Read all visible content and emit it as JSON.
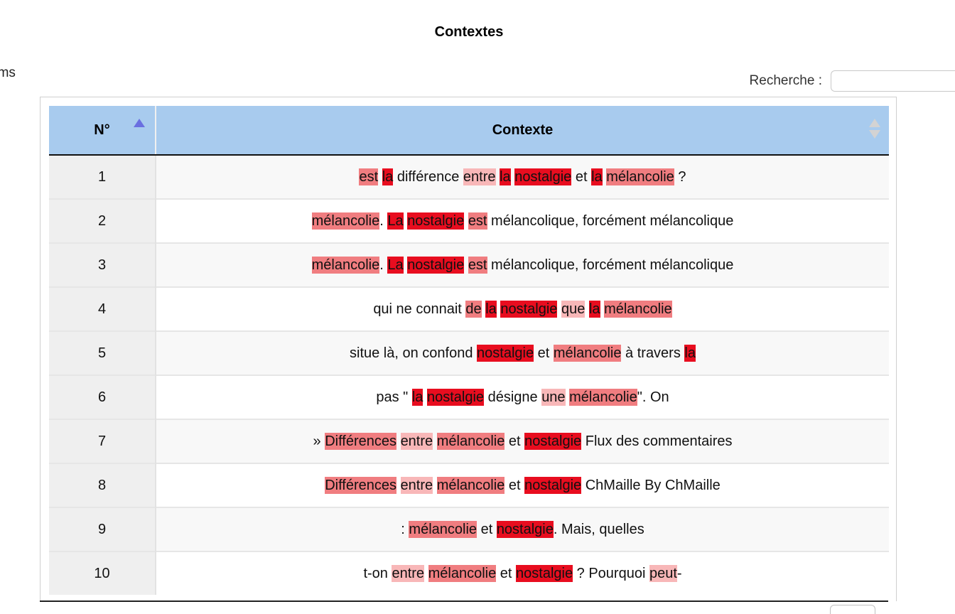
{
  "page": {
    "title": "Contextes",
    "items_label": "ems"
  },
  "search": {
    "label": "Recherche :",
    "value": "",
    "placeholder": ""
  },
  "colors": {
    "header_bg": "#a8cbee",
    "highlight_strong": "#e80d1f",
    "highlight_medium": "#f07d80",
    "highlight_light": "#f8b7b8",
    "sort_active": "#6a6fe0"
  },
  "table": {
    "columns": [
      {
        "label": "N°",
        "sort": "ascending"
      },
      {
        "label": "Contexte",
        "sort": "none"
      }
    ],
    "rows": [
      {
        "num": "1",
        "segments": [
          {
            "t": "est",
            "h": 2
          },
          {
            "t": " "
          },
          {
            "t": "la",
            "h": 1
          },
          {
            "t": " différence "
          },
          {
            "t": "entre",
            "h": 3
          },
          {
            "t": " "
          },
          {
            "t": "la",
            "h": 1
          },
          {
            "t": " "
          },
          {
            "t": "nostalgie",
            "h": 1
          },
          {
            "t": " et "
          },
          {
            "t": "la",
            "h": 1
          },
          {
            "t": " "
          },
          {
            "t": "mélancolie",
            "h": 2
          },
          {
            "t": " ?"
          }
        ]
      },
      {
        "num": "2",
        "segments": [
          {
            "t": "mélancolie",
            "h": 2
          },
          {
            "t": ". "
          },
          {
            "t": "La",
            "h": 1
          },
          {
            "t": " "
          },
          {
            "t": "nostalgie",
            "h": 1
          },
          {
            "t": " "
          },
          {
            "t": "est",
            "h": 2
          },
          {
            "t": " mélancolique, forcément mélancolique"
          }
        ]
      },
      {
        "num": "3",
        "segments": [
          {
            "t": "mélancolie",
            "h": 2
          },
          {
            "t": ". "
          },
          {
            "t": "La",
            "h": 1
          },
          {
            "t": " "
          },
          {
            "t": "nostalgie",
            "h": 1
          },
          {
            "t": " "
          },
          {
            "t": "est",
            "h": 2
          },
          {
            "t": " mélancolique, forcément mélancolique"
          }
        ]
      },
      {
        "num": "4",
        "segments": [
          {
            "t": "qui ne connait "
          },
          {
            "t": "de",
            "h": 2
          },
          {
            "t": " "
          },
          {
            "t": "la",
            "h": 1
          },
          {
            "t": " "
          },
          {
            "t": "nostalgie",
            "h": 1
          },
          {
            "t": " "
          },
          {
            "t": "que",
            "h": 3
          },
          {
            "t": " "
          },
          {
            "t": "la",
            "h": 1
          },
          {
            "t": " "
          },
          {
            "t": "mélancolie",
            "h": 2
          }
        ]
      },
      {
        "num": "5",
        "segments": [
          {
            "t": "situe là, on confond "
          },
          {
            "t": "nostalgie",
            "h": 1
          },
          {
            "t": " et "
          },
          {
            "t": "mélancolie",
            "h": 2
          },
          {
            "t": " à travers "
          },
          {
            "t": "la",
            "h": 1
          }
        ]
      },
      {
        "num": "6",
        "segments": [
          {
            "t": "pas \" "
          },
          {
            "t": "la",
            "h": 1
          },
          {
            "t": " "
          },
          {
            "t": "nostalgie",
            "h": 1
          },
          {
            "t": " désigne "
          },
          {
            "t": "une",
            "h": 3
          },
          {
            "t": " "
          },
          {
            "t": "mélancolie",
            "h": 2
          },
          {
            "t": "\". On"
          }
        ]
      },
      {
        "num": "7",
        "segments": [
          {
            "t": "» "
          },
          {
            "t": "Différences",
            "h": 2
          },
          {
            "t": " "
          },
          {
            "t": "entre",
            "h": 3
          },
          {
            "t": " "
          },
          {
            "t": "mélancolie",
            "h": 2
          },
          {
            "t": " et "
          },
          {
            "t": "nostalgie",
            "h": 1
          },
          {
            "t": " Flux des commentaires"
          }
        ]
      },
      {
        "num": "8",
        "segments": [
          {
            "t": "Différences",
            "h": 2
          },
          {
            "t": " "
          },
          {
            "t": "entre",
            "h": 3
          },
          {
            "t": " "
          },
          {
            "t": "mélancolie",
            "h": 2
          },
          {
            "t": " et "
          },
          {
            "t": "nostalgie",
            "h": 1
          },
          {
            "t": " ChMaille By ChMaille"
          }
        ]
      },
      {
        "num": "9",
        "segments": [
          {
            "t": ": "
          },
          {
            "t": "mélancolie",
            "h": 2
          },
          {
            "t": " et "
          },
          {
            "t": "nostalgie",
            "h": 1
          },
          {
            "t": ". Mais, quelles"
          }
        ]
      },
      {
        "num": "10",
        "segments": [
          {
            "t": "t-on "
          },
          {
            "t": "entre",
            "h": 3
          },
          {
            "t": " "
          },
          {
            "t": "mélancolie",
            "h": 2
          },
          {
            "t": " et "
          },
          {
            "t": "nostalgie",
            "h": 1
          },
          {
            "t": " ? Pourquoi "
          },
          {
            "t": "peut",
            "h": 3
          },
          {
            "t": "-"
          }
        ]
      }
    ]
  }
}
